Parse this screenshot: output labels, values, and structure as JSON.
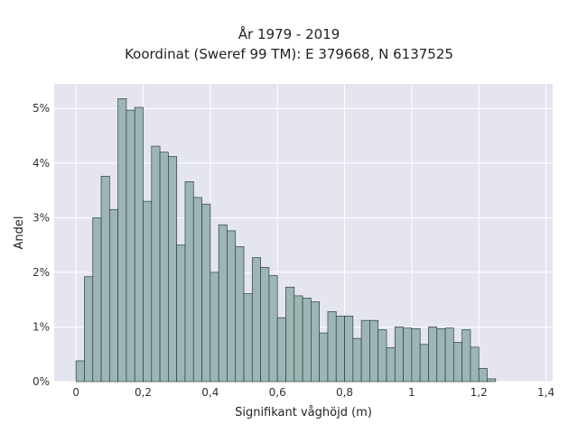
{
  "chart_data": {
    "type": "bar",
    "title": "År 1979 - 2019",
    "subtitle": "Koordinat (Sweref 99 TM): E 379668, N 6137525",
    "xlabel": "Signifikant våghöjd (m)",
    "ylabel": "Andel",
    "bin_width": 0.025,
    "bin_start": 0.0,
    "values": [
      0.38,
      1.92,
      3.0,
      3.76,
      3.15,
      5.18,
      4.97,
      5.02,
      3.3,
      4.31,
      4.2,
      4.12,
      2.5,
      3.66,
      3.37,
      3.25,
      2.0,
      2.87,
      2.76,
      2.47,
      1.61,
      2.27,
      2.09,
      1.94,
      1.17,
      1.73,
      1.57,
      1.53,
      1.46,
      0.89,
      1.28,
      1.2,
      1.2,
      0.79,
      1.12,
      1.12,
      0.95,
      0.62,
      1.0,
      0.98,
      0.97,
      0.68,
      1.0,
      0.97,
      0.98,
      0.72,
      0.95,
      0.63,
      0.24,
      0.05
    ],
    "xlim": [
      -0.065,
      1.42
    ],
    "ylim": [
      0,
      5.45
    ],
    "x_ticks": [
      0,
      0.2,
      0.4,
      0.6,
      0.8,
      1,
      1.2,
      1.4
    ],
    "x_tick_labels": [
      "0",
      "0,2",
      "0,4",
      "0,6",
      "0,8",
      "1",
      "1,2",
      "1,4"
    ],
    "y_ticks": [
      0,
      1,
      2,
      3,
      4,
      5
    ],
    "y_tick_labels": [
      "0%",
      "1%",
      "2%",
      "3%",
      "4%",
      "5%"
    ],
    "grid": true,
    "colors": {
      "plot_background": "#e5e5f0",
      "bar_fill": "#9db5b4",
      "bar_stroke": "#2f3f3e",
      "grid": "#ffffff"
    }
  }
}
